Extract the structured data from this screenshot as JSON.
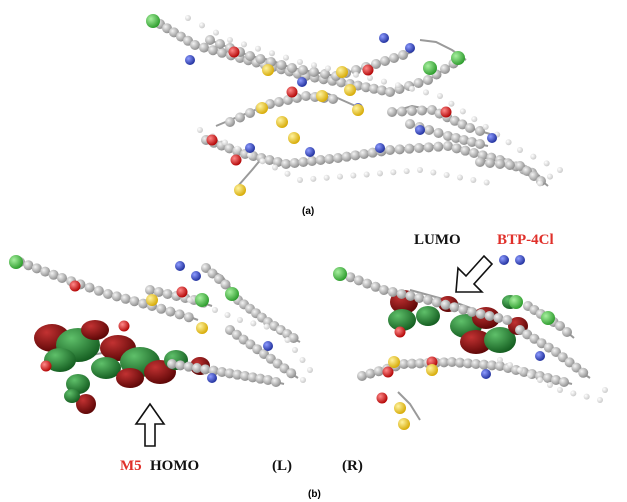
{
  "panel_a": {
    "caption": "(a)"
  },
  "panel_b": {
    "caption": "(b)",
    "left_tag": "(L)",
    "right_tag": "(R)",
    "homo_molecule": "M5",
    "homo_label": "HOMO",
    "lumo_label": "LUMO",
    "lumo_molecule": "BTP-4Cl"
  },
  "colors": {
    "carbon": "#9a9a9a",
    "hydrogen": "#e6e6e6",
    "nitrogen": "#2b3fb0",
    "oxygen": "#d11a1a",
    "sulfur": "#e8c230",
    "chlorine": "#3ab53a",
    "orbital_positive": "#7a0b0b",
    "orbital_negative": "#1f7a2e",
    "molecule_label": "#e0302a",
    "orbital_label": "#111111"
  }
}
